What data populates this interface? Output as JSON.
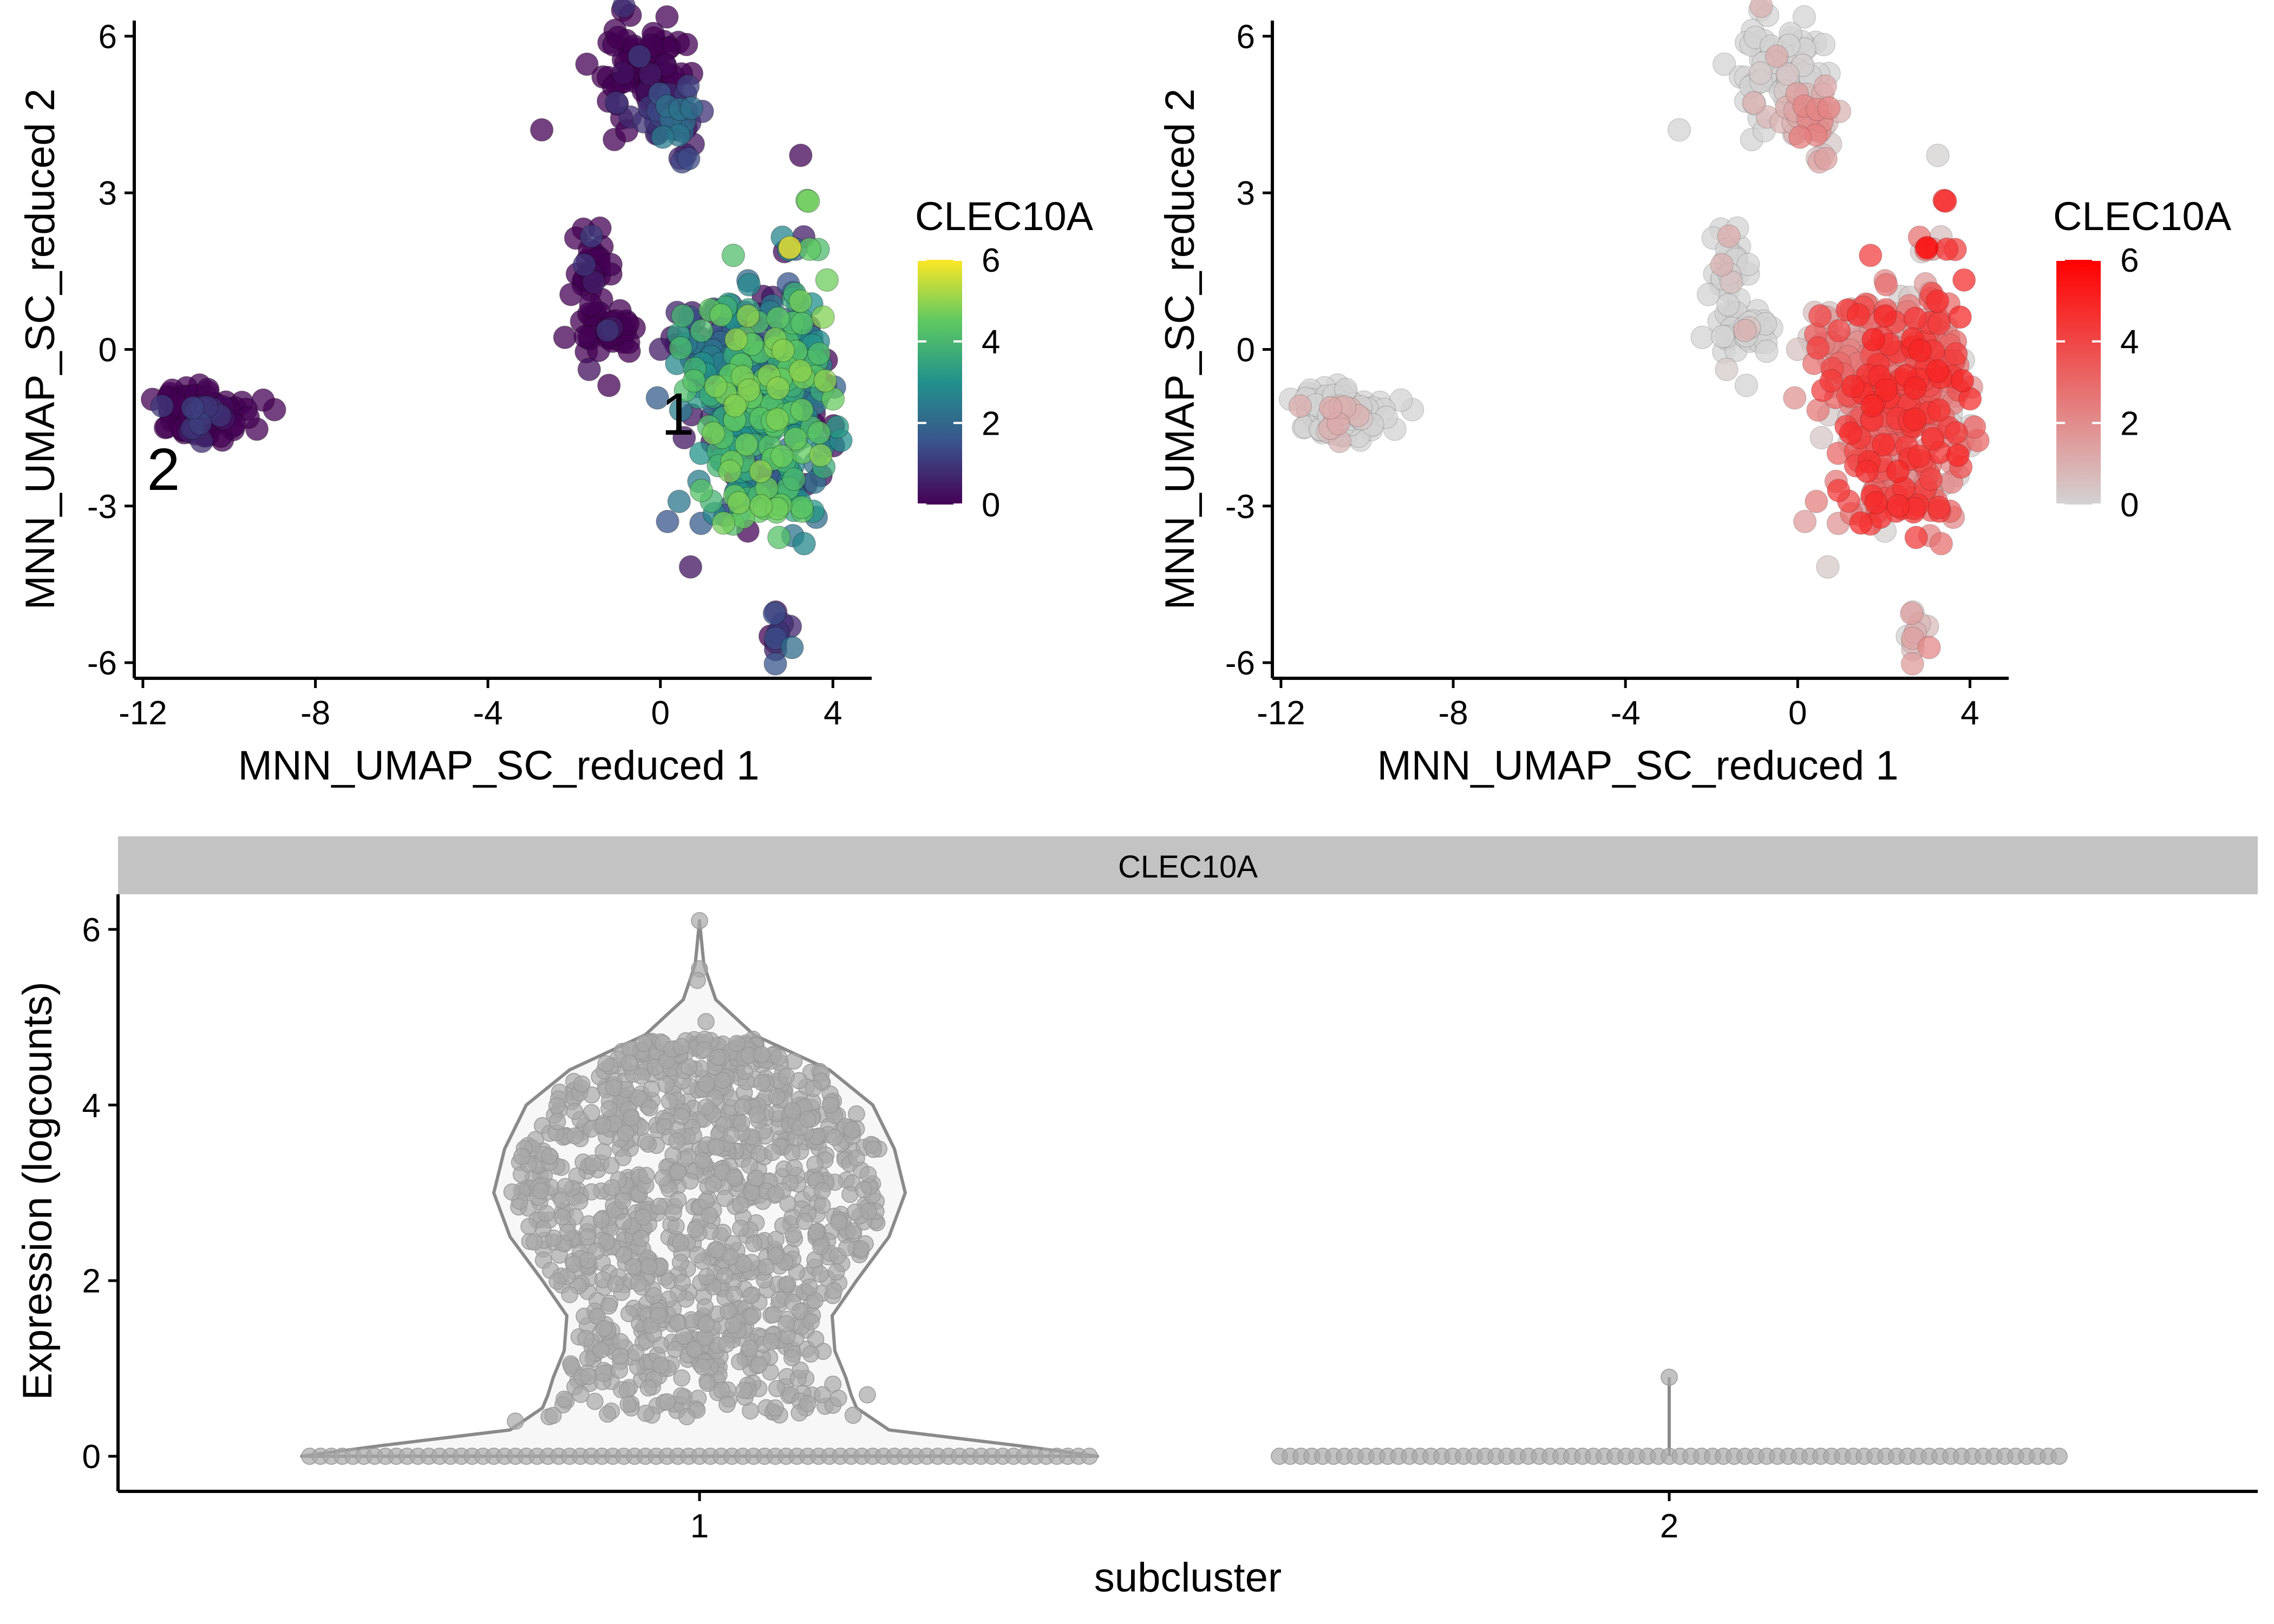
{
  "chart_data": [
    {
      "type": "scatter",
      "panel": "umap-viridis",
      "xlabel": "MNN_UMAP_SC_reduced 1",
      "ylabel": "MNN_UMAP_SC_reduced 2",
      "xlim": [
        -12.2,
        4.9
      ],
      "ylim": [
        -6.3,
        6.3
      ],
      "xticks": [
        -12,
        -8,
        -4,
        0,
        4
      ],
      "yticks": [
        -6,
        -3,
        0,
        3,
        6
      ],
      "legend_title": "CLEC10A",
      "legend_ticks": [
        0,
        2,
        4,
        6
      ],
      "color_range": [
        0,
        6
      ],
      "palette": "viridis",
      "legend_position": "right",
      "cluster_labels": [
        {
          "text": "1",
          "x": 0.5,
          "y": -1.2
        },
        {
          "text": "2",
          "x": -11.4,
          "y": -2.1
        }
      ]
    },
    {
      "type": "scatter",
      "panel": "umap-red",
      "xlabel": "MNN_UMAP_SC_reduced 1",
      "ylabel": "MNN_UMAP_SC_reduced 2",
      "xlim": [
        -12.2,
        4.9
      ],
      "ylim": [
        -6.3,
        6.3
      ],
      "xticks": [
        -12,
        -8,
        -4,
        0,
        4
      ],
      "yticks": [
        -6,
        -3,
        0,
        3,
        6
      ],
      "legend_title": "CLEC10A",
      "legend_ticks": [
        0,
        2,
        4,
        6
      ],
      "color_range": [
        0,
        6
      ],
      "colors": {
        "low": "#d3d3d3",
        "high": "#ff0000"
      },
      "legend_position": "right"
    },
    {
      "type": "violin",
      "panel": "violin",
      "strip_title": "CLEC10A",
      "xlabel": "subcluster",
      "ylabel": "Expression (logcounts)",
      "categories": [
        "1",
        "2"
      ],
      "ylim": [
        -0.4,
        6.4
      ],
      "yticks": [
        0,
        2,
        4,
        6
      ],
      "summary": [
        {
          "category": "1",
          "max": 6.1,
          "zero_fraction": 0.25,
          "bulk_range": [
            0.4,
            4.8
          ]
        },
        {
          "category": "2",
          "max": 0.9,
          "zero_fraction": 0.99
        }
      ],
      "colors": {
        "point": "#a8a8a8",
        "outline": "#8a8a8a",
        "fill": "#f7f7f7"
      }
    }
  ]
}
